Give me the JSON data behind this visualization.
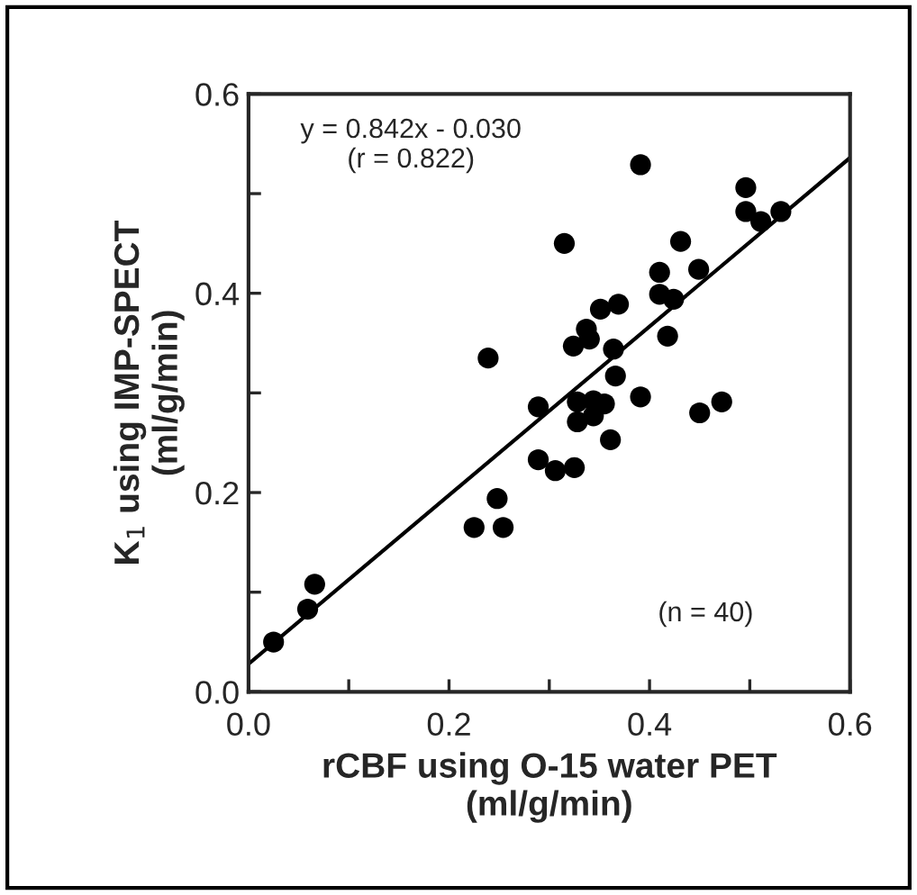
{
  "chart_data": {
    "type": "scatter",
    "xlabel": "rCBF using O-15 water PET\n(ml/g/min)",
    "ylabel": "K$_{1}$ using IMP-SPECT\n(ml/g/min)",
    "annotations": [
      "y = 0.842x - 0.030\n(r = 0.822)",
      "(n = 40)"
    ],
    "xlim": [
      0,
      0.6
    ],
    "ylim": [
      0,
      0.6
    ],
    "xticks": [
      {
        "value": 0,
        "label": "0.0"
      },
      {
        "value": 0.1,
        "label": null
      },
      0.2,
      {
        "value": 0.3,
        "label": null
      },
      0.4,
      {
        "value": 0.5,
        "label": null
      },
      0.6
    ],
    "yticks": [
      {
        "value": 0,
        "label": "0.0"
      },
      {
        "value": 0.1,
        "label": null
      },
      0.2,
      {
        "value": 0.3,
        "label": null
      },
      0.4,
      {
        "value": 0.5,
        "label": null
      },
      0.6
    ],
    "grid": false,
    "series": [
      {
        "color": "#000000",
        "marker": "circle",
        "x": [
          0.025,
          0.059,
          0.066,
          0.225,
          0.254,
          0.248,
          0.239,
          0.315,
          0.289,
          0.289,
          0.306,
          0.325,
          0.328,
          0.328,
          0.344,
          0.344,
          0.355,
          0.324,
          0.337,
          0.34,
          0.351,
          0.369,
          0.364,
          0.366,
          0.361,
          0.391,
          0.391,
          0.41,
          0.41,
          0.424,
          0.418,
          0.431,
          0.449,
          0.45,
          0.472,
          0.496,
          0.496,
          0.511,
          0.531
        ],
        "values": [
          0.05,
          0.083,
          0.108,
          0.165,
          0.165,
          0.194,
          0.335,
          0.45,
          0.286,
          0.233,
          0.222,
          0.225,
          0.291,
          0.271,
          0.292,
          0.277,
          0.289,
          0.347,
          0.364,
          0.354,
          0.384,
          0.389,
          0.344,
          0.317,
          0.253,
          0.296,
          0.529,
          0.421,
          0.399,
          0.394,
          0.357,
          0.452,
          0.424,
          0.28,
          0.291,
          0.506,
          0.482,
          0.472,
          0.482
        ]
      },
      {
        "type": "line",
        "color": "#000000",
        "x": [
          0.0,
          0.6
        ],
        "values": [
          0.028,
          0.536
        ]
      }
    ]
  }
}
